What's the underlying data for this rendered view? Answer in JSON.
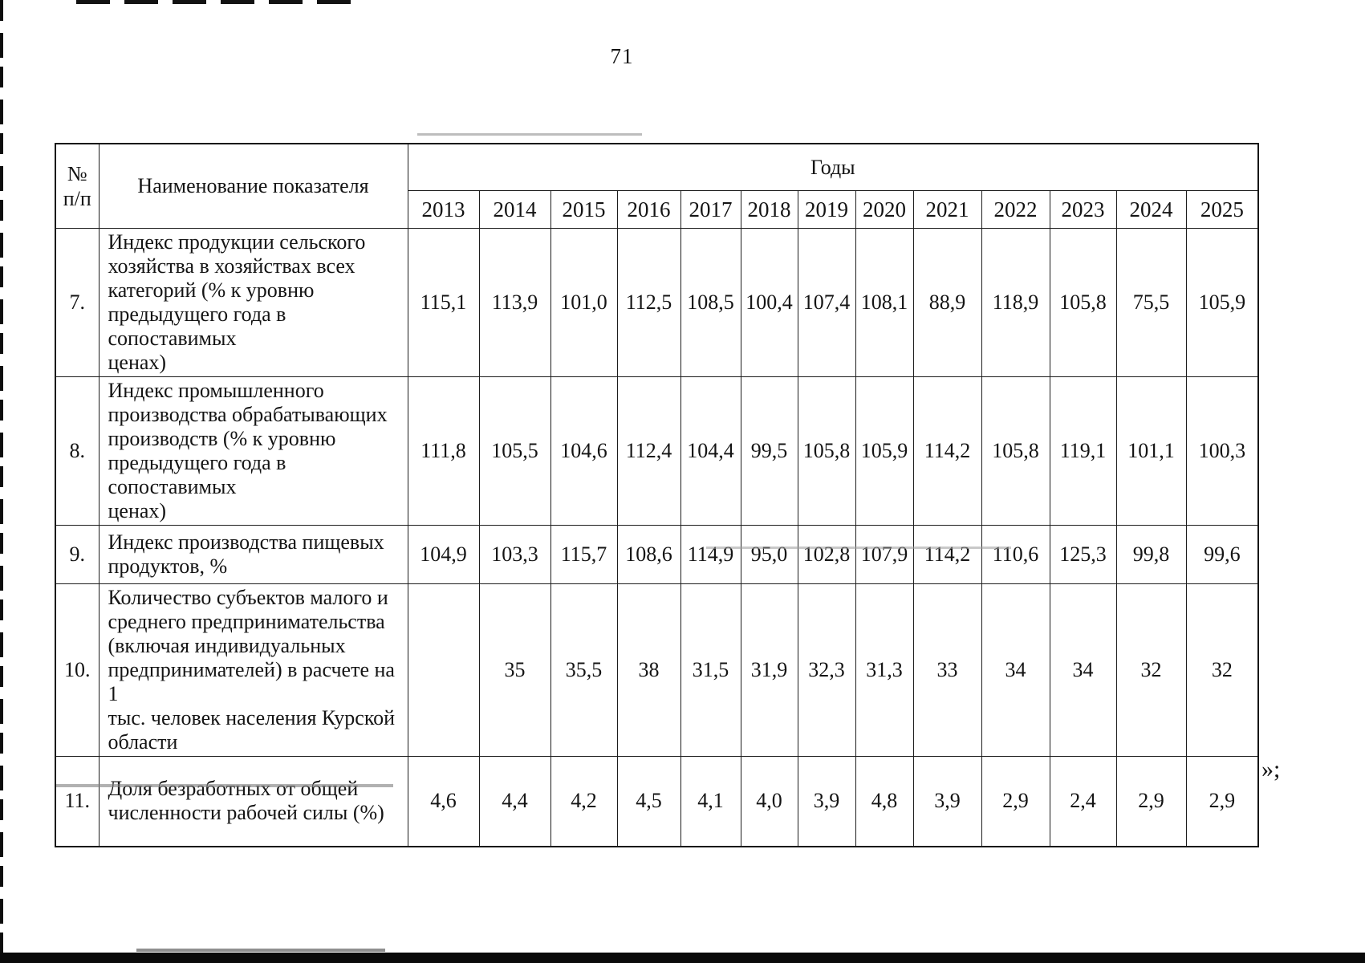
{
  "page": {
    "number": "71",
    "trailing_mark": "»;"
  },
  "table": {
    "header": {
      "number_col": "№\nп/п",
      "name_col": "Наименование показателя",
      "years_group": "Годы",
      "years": [
        "2013",
        "2014",
        "2015",
        "2016",
        "2017",
        "2018",
        "2019",
        "2020",
        "2021",
        "2022",
        "2023",
        "2024",
        "2025"
      ]
    },
    "rows": [
      {
        "num": "7.",
        "name": "Индекс продукции сельского\nхозяйства в хозяйствах всех\nкатегорий (% к уровню\nпредыдущего года в сопоставимых\nценах)",
        "values": [
          "115,1",
          "113,9",
          "101,0",
          "112,5",
          "108,5",
          "100,4",
          "107,4",
          "108,1",
          "88,9",
          "118,9",
          "105,8",
          "75,5",
          "105,9"
        ]
      },
      {
        "num": "8.",
        "name": "Индекс промышленного\nпроизводства обрабатывающих\nпроизводств (% к уровню\nпредыдущего года в сопоставимых\nценах)",
        "values": [
          "111,8",
          "105,5",
          "104,6",
          "112,4",
          "104,4",
          "99,5",
          "105,8",
          "105,9",
          "114,2",
          "105,8",
          "119,1",
          "101,1",
          "100,3"
        ]
      },
      {
        "num": "9.",
        "name": "Индекс производства пищевых\nпродуктов, %",
        "values": [
          "104,9",
          "103,3",
          "115,7",
          "108,6",
          "114,9",
          "95,0",
          "102,8",
          "107,9",
          "114,2",
          "110,6",
          "125,3",
          "99,8",
          "99,6"
        ]
      },
      {
        "num": "10.",
        "name": "Количество субъектов малого и\nсреднего предпринимательства\n(включая индивидуальных\nпредпринимателей) в расчете на 1\nтыс. человек населения Курской\nобласти",
        "values": [
          "",
          "35",
          "35,5",
          "38",
          "31,5",
          "31,9",
          "32,3",
          "31,3",
          "33",
          "34",
          "34",
          "32",
          "32"
        ]
      },
      {
        "num": "11.",
        "name": "Доля безработных от общей\nчисленности рабочей силы (%)",
        "values": [
          "4,6",
          "4,4",
          "4,2",
          "4,5",
          "4,1",
          "4,0",
          "3,9",
          "4,8",
          "3,9",
          "2,9",
          "2,4",
          "2,9",
          "2,9"
        ]
      }
    ]
  }
}
